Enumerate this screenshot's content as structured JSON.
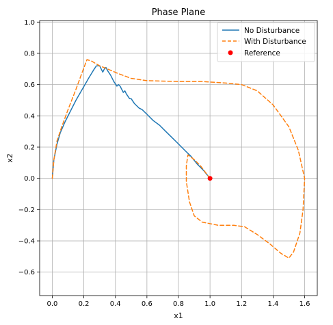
{
  "chart_data": {
    "type": "line",
    "title": "Phase Plane",
    "xlabel": "x1",
    "ylabel": "x2",
    "xlim": [
      -0.08,
      1.68
    ],
    "ylim": [
      -0.75,
      1.01
    ],
    "xticks": [
      0.0,
      0.2,
      0.4,
      0.6,
      0.8,
      1.0,
      1.2,
      1.4,
      1.6
    ],
    "xtick_labels": [
      "0.0",
      "0.2",
      "0.4",
      "0.6",
      "0.8",
      "1.0",
      "1.2",
      "1.4",
      "1.6"
    ],
    "yticks": [
      -0.6,
      -0.4,
      -0.2,
      0.0,
      0.2,
      0.4,
      0.6,
      0.8,
      1.0
    ],
    "ytick_labels": [
      "−0.6",
      "−0.4",
      "−0.2",
      "0.0",
      "0.2",
      "0.4",
      "0.6",
      "0.8",
      "1.0"
    ],
    "grid": true,
    "legend_position": "top-right",
    "series": [
      {
        "name": "No Disturbance",
        "style": "solid",
        "color": "#1f77b4",
        "points": [
          [
            0.0,
            0.0
          ],
          [
            0.01,
            0.12
          ],
          [
            0.03,
            0.22
          ],
          [
            0.05,
            0.29
          ],
          [
            0.08,
            0.36
          ],
          [
            0.11,
            0.42
          ],
          [
            0.15,
            0.5
          ],
          [
            0.19,
            0.57
          ],
          [
            0.23,
            0.64
          ],
          [
            0.26,
            0.69
          ],
          [
            0.28,
            0.72
          ],
          [
            0.3,
            0.72
          ],
          [
            0.31,
            0.7
          ],
          [
            0.32,
            0.68
          ],
          [
            0.33,
            0.7
          ],
          [
            0.34,
            0.71
          ],
          [
            0.35,
            0.69
          ],
          [
            0.37,
            0.66
          ],
          [
            0.39,
            0.62
          ],
          [
            0.41,
            0.59
          ],
          [
            0.42,
            0.6
          ],
          [
            0.43,
            0.59
          ],
          [
            0.44,
            0.57
          ],
          [
            0.45,
            0.55
          ],
          [
            0.46,
            0.56
          ],
          [
            0.47,
            0.54
          ],
          [
            0.49,
            0.51
          ],
          [
            0.5,
            0.51
          ],
          [
            0.52,
            0.48
          ],
          [
            0.54,
            0.46
          ],
          [
            0.55,
            0.45
          ],
          [
            0.57,
            0.44
          ],
          [
            0.6,
            0.41
          ],
          [
            0.64,
            0.37
          ],
          [
            0.68,
            0.34
          ],
          [
            0.72,
            0.3
          ],
          [
            0.76,
            0.26
          ],
          [
            0.8,
            0.22
          ],
          [
            0.84,
            0.18
          ],
          [
            0.88,
            0.14
          ],
          [
            0.92,
            0.09
          ],
          [
            0.96,
            0.05
          ],
          [
            1.0,
            0.0
          ]
        ]
      },
      {
        "name": "With Disturbance",
        "style": "dashed",
        "color": "#ff7f0e",
        "points": [
          [
            0.0,
            0.0
          ],
          [
            0.01,
            0.12
          ],
          [
            0.03,
            0.24
          ],
          [
            0.06,
            0.33
          ],
          [
            0.1,
            0.44
          ],
          [
            0.15,
            0.57
          ],
          [
            0.19,
            0.68
          ],
          [
            0.22,
            0.76
          ],
          [
            0.25,
            0.75
          ],
          [
            0.3,
            0.72
          ],
          [
            0.35,
            0.7
          ],
          [
            0.42,
            0.67
          ],
          [
            0.5,
            0.64
          ],
          [
            0.6,
            0.625
          ],
          [
            0.8,
            0.62
          ],
          [
            0.95,
            0.62
          ],
          [
            1.1,
            0.61
          ],
          [
            1.2,
            0.6
          ],
          [
            1.3,
            0.56
          ],
          [
            1.4,
            0.47
          ],
          [
            1.5,
            0.33
          ],
          [
            1.56,
            0.18
          ],
          [
            1.6,
            0.0
          ],
          [
            1.59,
            -0.2
          ],
          [
            1.57,
            -0.35
          ],
          [
            1.53,
            -0.47
          ],
          [
            1.5,
            -0.51
          ],
          [
            1.45,
            -0.48
          ],
          [
            1.38,
            -0.42
          ],
          [
            1.3,
            -0.36
          ],
          [
            1.22,
            -0.31
          ],
          [
            1.15,
            -0.3
          ],
          [
            1.05,
            -0.3
          ],
          [
            0.95,
            -0.28
          ],
          [
            0.9,
            -0.24
          ],
          [
            0.87,
            -0.15
          ],
          [
            0.85,
            -0.02
          ],
          [
            0.85,
            0.08
          ],
          [
            0.86,
            0.15
          ],
          [
            0.9,
            0.12
          ],
          [
            0.94,
            0.08
          ],
          [
            0.97,
            0.04
          ],
          [
            1.0,
            0.0
          ]
        ]
      }
    ],
    "markers": [
      {
        "name": "Reference",
        "color": "#ff0000",
        "x": 1.0,
        "y": 0.0
      }
    ]
  }
}
